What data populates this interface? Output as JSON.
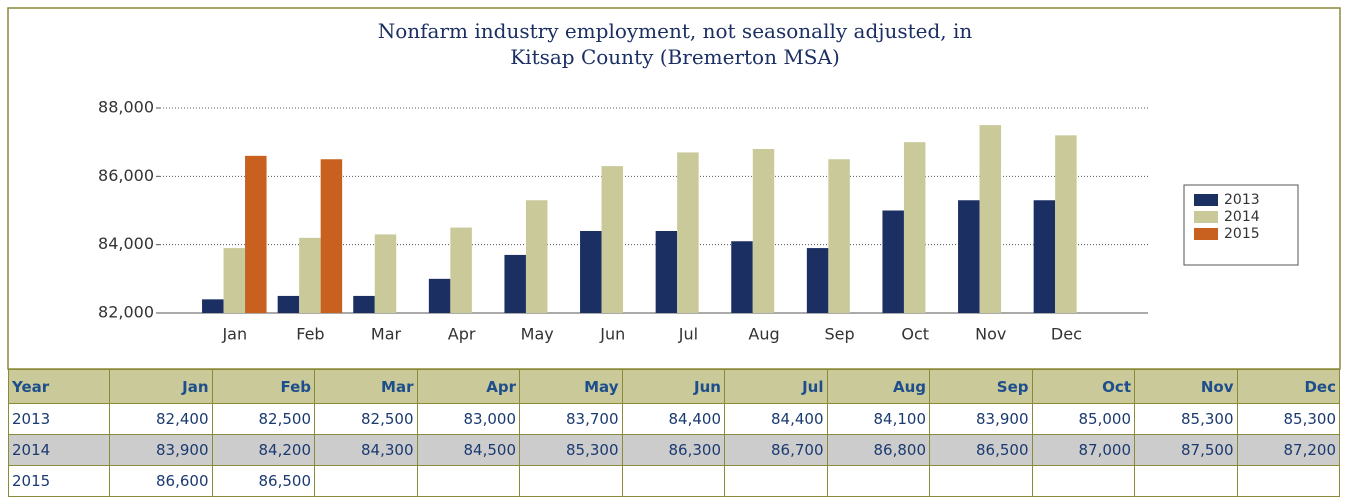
{
  "chart_data": {
    "type": "bar",
    "title": [
      "Nonfarm industry employment, not seasonally adjusted, in",
      "Kitsap County (Bremerton MSA)"
    ],
    "categories": [
      "Jan",
      "Feb",
      "Mar",
      "Apr",
      "May",
      "Jun",
      "Jul",
      "Aug",
      "Sep",
      "Oct",
      "Nov",
      "Dec"
    ],
    "series": [
      {
        "name": "2013",
        "color": "#1b2f63",
        "values": [
          82400,
          82500,
          82500,
          83000,
          83700,
          84400,
          84400,
          84100,
          83900,
          85000,
          85300,
          85300
        ],
        "value_labels": [
          "82,400",
          "82,500",
          "82,500",
          "83,000",
          "83,700",
          "84,400",
          "84,400",
          "84,100",
          "83,900",
          "85,000",
          "85,300",
          "85,300"
        ]
      },
      {
        "name": "2014",
        "color": "#c9c99a",
        "values": [
          83900,
          84200,
          84300,
          84500,
          85300,
          86300,
          86700,
          86800,
          86500,
          87000,
          87500,
          87200
        ],
        "value_labels": [
          "83,900",
          "84,200",
          "84,300",
          "84,500",
          "85,300",
          "86,300",
          "86,700",
          "86,800",
          "86,500",
          "87,000",
          "87,500",
          "87,200"
        ]
      },
      {
        "name": "2015",
        "color": "#c8611f",
        "values": [
          86600,
          86500,
          null,
          null,
          null,
          null,
          null,
          null,
          null,
          null,
          null,
          null
        ],
        "value_labels": [
          "86,600",
          "86,500",
          null,
          null,
          null,
          null,
          null,
          null,
          null,
          null,
          null,
          null
        ]
      }
    ],
    "ylim": [
      82000,
      88000
    ],
    "yticks": [
      {
        "value": 82000,
        "label": "82,000"
      },
      {
        "value": 84000,
        "label": "84,000"
      },
      {
        "value": 86000,
        "label": "86,000"
      },
      {
        "value": 88000,
        "label": "88,000"
      }
    ],
    "grid": true,
    "legend": "right",
    "table_first_header": "Year"
  }
}
